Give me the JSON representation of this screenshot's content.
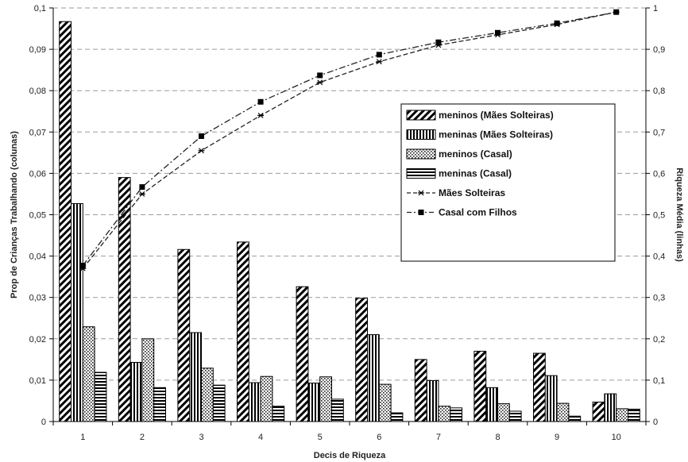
{
  "chart_data": {
    "type": "bar",
    "title": "",
    "xlabel": "Decis de Riqueza",
    "ylabel": "Prop de Crianças Trabalhando (colunas)",
    "y2label": "Riqueza Média (linhas)",
    "categories": [
      "1",
      "2",
      "3",
      "4",
      "5",
      "6",
      "7",
      "8",
      "9",
      "10"
    ],
    "ylim": [
      0,
      0.1
    ],
    "y2lim": [
      0,
      1
    ],
    "yticks": [
      "0",
      "0,01",
      "0,02",
      "0,03",
      "0,04",
      "0,05",
      "0,06",
      "0,07",
      "0,08",
      "0,09",
      "0,1"
    ],
    "y2ticks": [
      "0",
      "0,1",
      "0,2",
      "0,3",
      "0,4",
      "0,5",
      "0,6",
      "0,7",
      "0,8",
      "0,9",
      "1"
    ],
    "grid": true,
    "legend_position": "right",
    "series": [
      {
        "name": "meninos (Mães Solteiras)",
        "kind": "bar",
        "pattern": "diagonal",
        "values": [
          0.0967,
          0.059,
          0.0416,
          0.0434,
          0.0326,
          0.0298,
          0.015,
          0.017,
          0.0165,
          0.0047
        ]
      },
      {
        "name": "meninas (Mães Solteiras)",
        "kind": "bar",
        "pattern": "vertical",
        "values": [
          0.0527,
          0.0143,
          0.0215,
          0.0094,
          0.0093,
          0.021,
          0.0099,
          0.0082,
          0.0111,
          0.0067
        ]
      },
      {
        "name": "meninos (Casal)",
        "kind": "bar",
        "pattern": "dots",
        "values": [
          0.0229,
          0.02,
          0.0129,
          0.0109,
          0.0108,
          0.009,
          0.0037,
          0.0043,
          0.0044,
          0.0031
        ]
      },
      {
        "name": "meninas (Casal)",
        "kind": "bar",
        "pattern": "horizontal",
        "values": [
          0.0119,
          0.0082,
          0.0088,
          0.0037,
          0.0054,
          0.0021,
          0.0033,
          0.0025,
          0.0013,
          0.003
        ]
      },
      {
        "name": "Mães Solteiras",
        "kind": "line",
        "axis": "right",
        "marker": "star",
        "values": [
          0.37,
          0.55,
          0.655,
          0.74,
          0.82,
          0.87,
          0.91,
          0.935,
          0.96,
          0.99
        ]
      },
      {
        "name": "Casal com Filhos",
        "kind": "line",
        "axis": "right",
        "marker": "square",
        "values": [
          0.377,
          0.567,
          0.69,
          0.773,
          0.837,
          0.887,
          0.917,
          0.94,
          0.963,
          0.99
        ]
      }
    ]
  }
}
